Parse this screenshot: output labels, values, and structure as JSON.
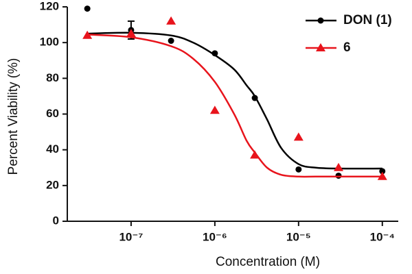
{
  "chart_data": {
    "type": "dose-response",
    "x_label": "Concentration  (M)",
    "y_label": "Percent Viability  (%)",
    "xscale": "log",
    "xlim": [
      1.73e-08,
      0.000155
    ],
    "xticks": [
      {
        "value": 1e-07,
        "label": "10⁻⁷"
      },
      {
        "value": 1e-06,
        "label": "10⁻⁶"
      },
      {
        "value": 1e-05,
        "label": "10⁻⁵"
      },
      {
        "value": 0.0001,
        "label": "10⁻⁴"
      }
    ],
    "ylim": [
      0,
      120
    ],
    "yticks": [
      0,
      20,
      40,
      60,
      80,
      100,
      120
    ],
    "legend": "top-right",
    "x": [
      3e-08,
      1e-07,
      3e-07,
      1e-06,
      3e-06,
      1e-05,
      3e-05,
      0.0001
    ],
    "fit_x": [
      3e-08,
      1e-07,
      3e-07,
      5.5e-07,
      1e-06,
      1.7e-06,
      2.4e-06,
      3e-06,
      4.2e-06,
      6.2e-06,
      1e-05,
      1.6e-05,
      3e-05,
      0.0001
    ],
    "series": [
      {
        "name": "DON (1)",
        "color": "#000000",
        "marker": "circle",
        "values": [
          119,
          107,
          101,
          94,
          69,
          29,
          25.5,
          28
        ],
        "errors": [
          null,
          5,
          null,
          null,
          null,
          null,
          null,
          null
        ],
        "fit_values": [
          105,
          105.5,
          104,
          100,
          93,
          85,
          76,
          70,
          57,
          41,
          32,
          30,
          29.5,
          29.5
        ]
      },
      {
        "name": "6",
        "color": "#e8141c",
        "marker": "triangle",
        "values": [
          104,
          105,
          112,
          62,
          37,
          47,
          30,
          25
        ],
        "errors": [
          null,
          null,
          null,
          null,
          null,
          null,
          null,
          null
        ],
        "fit_values": [
          104.5,
          103,
          98,
          91,
          78,
          60,
          45,
          38.5,
          30,
          26,
          25,
          25,
          25,
          25
        ]
      }
    ]
  }
}
